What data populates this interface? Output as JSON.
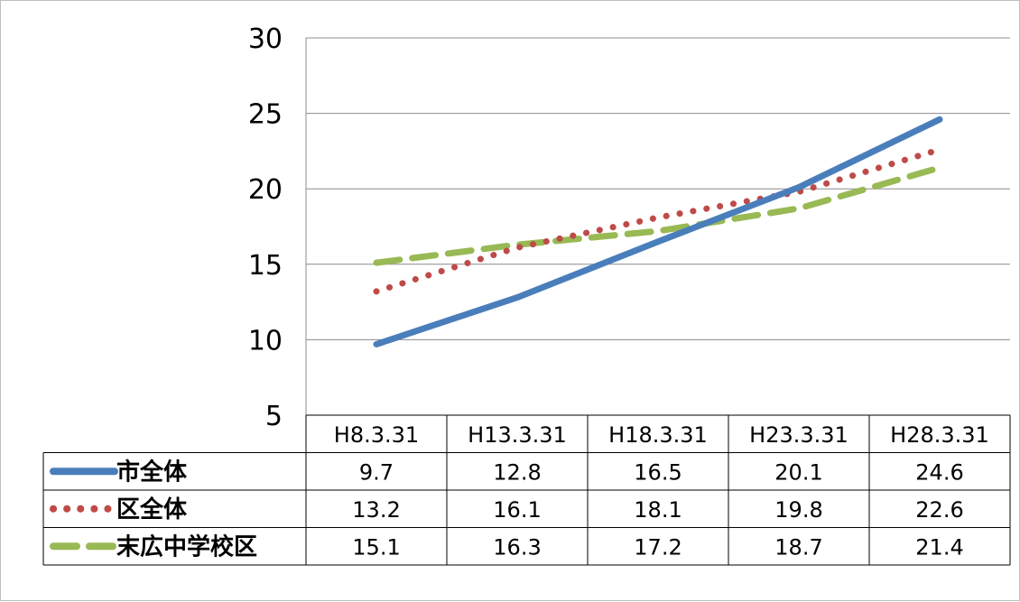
{
  "chart_data": {
    "type": "line",
    "categories": [
      "H8.3.31",
      "H13.3.31",
      "H18.3.31",
      "H23.3.31",
      "H28.3.31"
    ],
    "series": [
      {
        "name": "市全体",
        "values": [
          9.7,
          12.8,
          16.5,
          20.1,
          24.6
        ],
        "color": "#4a7ebb",
        "style": "solid"
      },
      {
        "name": "区全体",
        "values": [
          13.2,
          16.1,
          18.1,
          19.8,
          22.6
        ],
        "color": "#be4b48",
        "style": "dotted"
      },
      {
        "name": "末広中学校区",
        "values": [
          15.1,
          16.3,
          17.2,
          18.7,
          21.4
        ],
        "color": "#98b954",
        "style": "dashed"
      }
    ],
    "yticks": [
      5,
      10,
      15,
      20,
      25,
      30
    ],
    "ylim": [
      5,
      30
    ],
    "grid": true,
    "legend": "data-table"
  }
}
